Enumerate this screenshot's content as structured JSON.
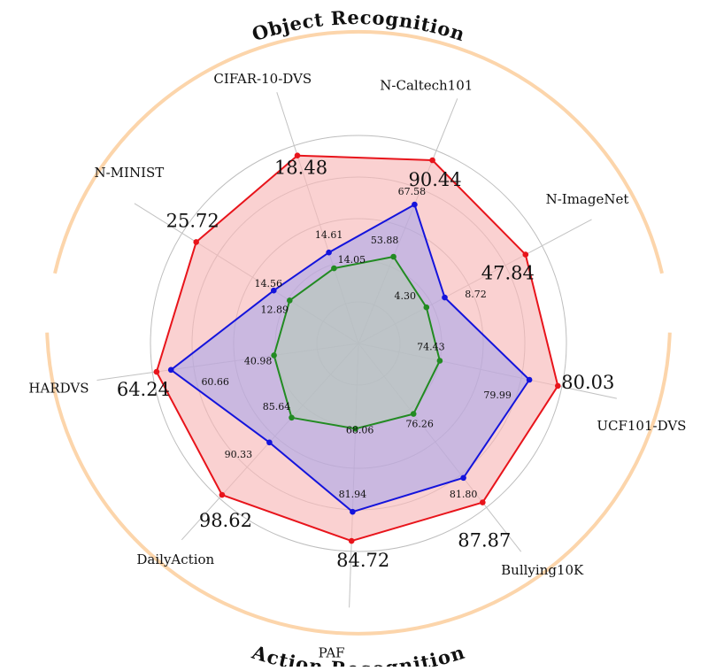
{
  "chart_data": {
    "type": "radar",
    "groups": [
      "Object Recognition",
      "Action Recognition"
    ],
    "categories": [
      "N-Caltech101",
      "N-ImageNet",
      "UCF101-DVS",
      "Bullying10K",
      "PAF",
      "DailyAction",
      "HARDVS",
      "N-MINIST",
      "CIFAR-10-DVS"
    ],
    "series": [
      {
        "values": [
          90.44,
          47.84,
          80.03,
          87.87,
          84.72,
          98.62,
          64.24,
          25.72,
          18.48
        ],
        "radii": [
          0.95,
          0.91,
          0.98,
          0.97,
          0.95,
          0.98,
          0.98,
          0.92,
          0.95
        ],
        "color": "#e8141b",
        "fill": "#f8b8b8",
        "fill_opacity": 0.65
      },
      {
        "values": [
          67.58,
          8.72,
          79.99,
          81.8,
          81.94,
          90.33,
          60.66,
          14.56,
          14.61
        ],
        "radii": [
          0.72,
          0.47,
          0.84,
          0.82,
          0.81,
          0.64,
          0.91,
          0.48,
          0.46
        ],
        "color": "#1414dc",
        "fill": "#9aa0f0",
        "fill_opacity": 0.5
      },
      {
        "values": [
          53.88,
          4.3,
          74.43,
          76.26,
          68.06,
          85.64,
          40.98,
          12.89,
          14.05
        ],
        "radii": [
          0.45,
          0.37,
          0.4,
          0.43,
          0.41,
          0.48,
          0.41,
          0.39,
          0.38
        ],
        "color": "#228b22",
        "fill": "#b4cdb4",
        "fill_opacity": 0.55
      }
    ],
    "grid": true,
    "rlim": [
      0,
      1
    ]
  }
}
